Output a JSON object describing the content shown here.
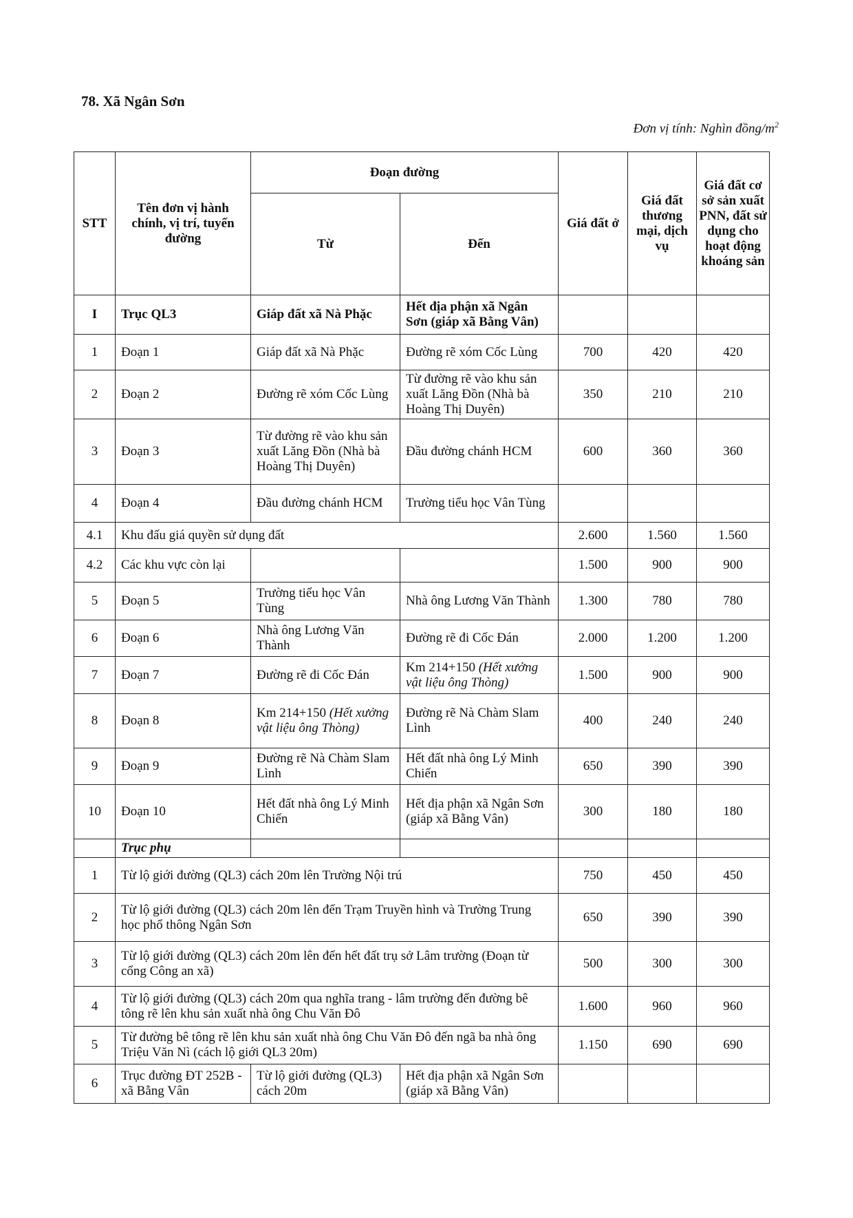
{
  "title": "78. Xã Ngân Sơn",
  "unit": "Đơn vị tính: Nghìn đồng/m",
  "unit_sup": "2",
  "headers": {
    "stt": "STT",
    "name": "Tên đơn vị hành chính, vị trí, tuyến đường",
    "segment": "Đoạn đường",
    "from": "Từ",
    "to": "Đến",
    "p1": "Giá đất ở",
    "p2": "Giá đất thương mại, dịch vụ",
    "p3": "Giá đất cơ sở sản xuất PNN, đất sử dụng cho hoạt động khoáng sản"
  },
  "rows": [
    {
      "type": "bold",
      "stt": "I",
      "name": "Trục QL3",
      "from": "Giáp đất xã Nà Phặc",
      "to": "Hết địa phận xã Ngân Sơn (giáp xã Bằng Vân)",
      "p1": "",
      "p2": "",
      "p3": ""
    },
    {
      "type": "normal",
      "stt": "1",
      "name": "Đoạn 1",
      "from": "Giáp đất xã Nà Phặc",
      "to": "Đường rẽ xóm Cốc Lùng",
      "p1": "700",
      "p2": "420",
      "p3": "420"
    },
    {
      "type": "normal",
      "stt": "2",
      "name": "Đoạn 2",
      "from": "Đường rẽ xóm Cốc Lùng",
      "to": "Từ đường rẽ vào khu sản xuất Lăng Đồn (Nhà bà Hoàng Thị Duyên)",
      "p1": "350",
      "p2": "210",
      "p3": "210"
    },
    {
      "type": "normal",
      "stt": "3",
      "name": "Đoạn 3",
      "from": "Từ đường rẽ vào khu sản xuất Lăng Đồn (Nhà bà Hoàng Thị Duyên)",
      "to": "Đầu đường chánh HCM",
      "p1": "600",
      "p2": "360",
      "p3": "360"
    },
    {
      "type": "normal",
      "stt": "4",
      "name": "Đoạn 4",
      "from": "Đầu đường chánh HCM",
      "to": "Trường tiểu học Vân Tùng",
      "p1": "",
      "p2": "",
      "p3": ""
    },
    {
      "type": "span",
      "stt": "4.1",
      "name": "Khu đấu giá quyền sử dụng đất",
      "p1": "2.600",
      "p2": "1.560",
      "p3": "1.560"
    },
    {
      "type": "normal",
      "stt": "4.2",
      "name": "Các khu vực còn lại",
      "from": "",
      "to": "",
      "p1": "1.500",
      "p2": "900",
      "p3": "900"
    },
    {
      "type": "normal",
      "stt": "5",
      "name": "Đoạn 5",
      "from": "Trường tiểu học Vân Tùng",
      "to": "Nhà ông Lương Văn Thành",
      "p1": "1.300",
      "p2": "780",
      "p3": "780"
    },
    {
      "type": "normal",
      "stt": "6",
      "name": "Đoạn 6",
      "from": "Nhà ông Lương Văn Thành",
      "to": "Đường rẽ đi Cốc Đán",
      "p1": "2.000",
      "p2": "1.200",
      "p3": "1.200"
    },
    {
      "type": "normal",
      "stt": "7",
      "name": "Đoạn 7",
      "from": "Đường rẽ đi Cốc Đán",
      "to": "Km 214+150",
      "to_note": "(Hết xưởng vật liệu ông Thòng)",
      "p1": "1.500",
      "p2": "900",
      "p3": "900"
    },
    {
      "type": "normal",
      "stt": "8",
      "name": "Đoạn 8",
      "from": "Km 214+150",
      "from_note": "(Hết xưởng vật liệu ông Thòng)",
      "to": "Đường rẽ Nà Chàm Slam Lình",
      "p1": "400",
      "p2": "240",
      "p3": "240"
    },
    {
      "type": "normal",
      "stt": "9",
      "name": "Đoạn 9",
      "from": "Đường rẽ Nà Chàm Slam Lình",
      "to": "Hết đất nhà ông Lý Minh Chiến",
      "p1": "650",
      "p2": "390",
      "p3": "390"
    },
    {
      "type": "normal",
      "stt": "10",
      "name": "Đoạn 10",
      "from": "Hết đất nhà ông Lý Minh Chiến",
      "to": "Hết địa phận xã Ngân Sơn (giáp xã Bằng Vân)",
      "p1": "300",
      "p2": "180",
      "p3": "180"
    },
    {
      "type": "section",
      "stt": "",
      "name": "Trục phụ",
      "from": "",
      "to": "",
      "p1": "",
      "p2": "",
      "p3": ""
    },
    {
      "type": "span",
      "stt": "1",
      "name": "Từ lộ giới đường (QL3) cách 20m lên Trường Nội trú",
      "p1": "750",
      "p2": "450",
      "p3": "450"
    },
    {
      "type": "span",
      "stt": "2",
      "name": "Từ lộ giới đường (QL3) cách 20m lên đến Trạm Truyền hình và Trường Trung học phổ thông Ngân Sơn",
      "p1": "650",
      "p2": "390",
      "p3": "390"
    },
    {
      "type": "span",
      "stt": "3",
      "name": "Từ lộ giới đường (QL3) cách 20m lên đến hết đất trụ sở Lâm trường (Đoạn từ cổng Công an xã)",
      "p1": "500",
      "p2": "300",
      "p3": "300"
    },
    {
      "type": "span",
      "stt": "4",
      "name": "Từ lộ giới đường (QL3) cách 20m qua nghĩa trang - lâm trường đến đường bê tông rẽ lên khu sản xuất nhà ông Chu Văn Đô",
      "p1": "1.600",
      "p2": "960",
      "p3": "960"
    },
    {
      "type": "span",
      "stt": "5",
      "name": "Từ đường bê tông rẽ lên khu sản xuất nhà ông Chu Văn Đô đến ngã ba nhà ông Triệu Văn Nì (cách lộ giới QL3 20m)",
      "p1": "1.150",
      "p2": "690",
      "p3": "690"
    },
    {
      "type": "normal",
      "stt": "6",
      "name": "Trục đường ĐT 252B - xã Bằng Vân",
      "from": "Từ lộ giới đường (QL3) cách 20m",
      "to": "Hết địa phận xã Ngân Sơn (giáp xã Bằng Vân)",
      "p1": "",
      "p2": "",
      "p3": ""
    }
  ]
}
